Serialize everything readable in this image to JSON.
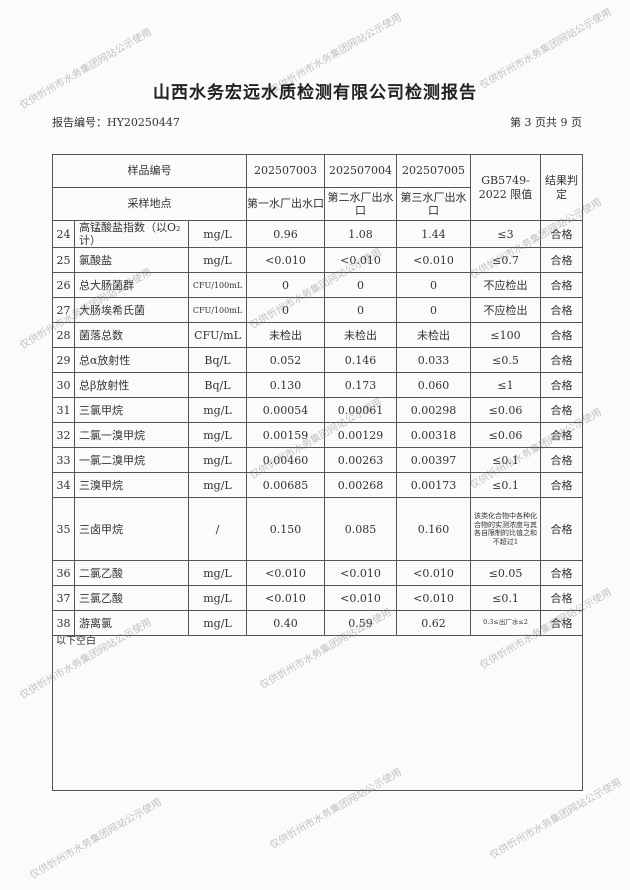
{
  "title": "山西水务宏远水质检测有限公司检测报告",
  "report_no": "报告编号：HY20250447",
  "page_info": "第 3 页共 9 页",
  "header": {
    "sample_no_label": "样品编号",
    "location_label": "采样地点",
    "samples": [
      "202507003",
      "202507004",
      "202507005"
    ],
    "locations": [
      "第一水厂出水口",
      "第二水厂出水口",
      "第三水厂出水口"
    ],
    "limit_label": "GB5749-2022 限值",
    "result_label": "结果判定"
  },
  "rows": [
    {
      "no": "24",
      "name": "高锰酸盐指数（以O₂计）",
      "unit": "mg/L",
      "v1": "0.96",
      "v2": "1.08",
      "v3": "1.44",
      "limit": "≤3",
      "result": "合格"
    },
    {
      "no": "25",
      "name": "氯酸盐",
      "unit": "mg/L",
      "v1": "<0.010",
      "v2": "<0.010",
      "v3": "<0.010",
      "limit": "≤0.7",
      "result": "合格"
    },
    {
      "no": "26",
      "name": "总大肠菌群",
      "unit": "CFU/100mL",
      "v1": "0",
      "v2": "0",
      "v3": "0",
      "limit": "不应检出",
      "result": "合格"
    },
    {
      "no": "27",
      "name": "大肠埃希氏菌",
      "unit": "CFU/100mL",
      "v1": "0",
      "v2": "0",
      "v3": "0",
      "limit": "不应检出",
      "result": "合格"
    },
    {
      "no": "28",
      "name": "菌落总数",
      "unit": "CFU/mL",
      "v1": "未检出",
      "v2": "未检出",
      "v3": "未检出",
      "limit": "≤100",
      "result": "合格"
    },
    {
      "no": "29",
      "name": "总α放射性",
      "unit": "Bq/L",
      "v1": "0.052",
      "v2": "0.146",
      "v3": "0.033",
      "limit": "≤0.5",
      "result": "合格"
    },
    {
      "no": "30",
      "name": "总β放射性",
      "unit": "Bq/L",
      "v1": "0.130",
      "v2": "0.173",
      "v3": "0.060",
      "limit": "≤1",
      "result": "合格"
    },
    {
      "no": "31",
      "name": "三氯甲烷",
      "unit": "mg/L",
      "v1": "0.00054",
      "v2": "0.00061",
      "v3": "0.00298",
      "limit": "≤0.06",
      "result": "合格"
    },
    {
      "no": "32",
      "name": "二氯一溴甲烷",
      "unit": "mg/L",
      "v1": "0.00159",
      "v2": "0.00129",
      "v3": "0.00318",
      "limit": "≤0.06",
      "result": "合格"
    },
    {
      "no": "33",
      "name": "一氯二溴甲烷",
      "unit": "mg/L",
      "v1": "0.00460",
      "v2": "0.00263",
      "v3": "0.00397",
      "limit": "≤0.1",
      "result": "合格"
    },
    {
      "no": "34",
      "name": "三溴甲烷",
      "unit": "mg/L",
      "v1": "0.00685",
      "v2": "0.00268",
      "v3": "0.00173",
      "limit": "≤0.1",
      "result": "合格"
    },
    {
      "no": "35",
      "name": "三卤甲烷",
      "unit": "/",
      "v1": "0.150",
      "v2": "0.085",
      "v3": "0.160",
      "limit": "该类化合物中各种化合物的实测浓度与其各自限制的比值之和不超过1",
      "result": "合格"
    },
    {
      "no": "36",
      "name": "二氯乙酸",
      "unit": "mg/L",
      "v1": "<0.010",
      "v2": "<0.010",
      "v3": "<0.010",
      "limit": "≤0.05",
      "result": "合格"
    },
    {
      "no": "37",
      "name": "三氯乙酸",
      "unit": "mg/L",
      "v1": "<0.010",
      "v2": "<0.010",
      "v3": "<0.010",
      "limit": "≤0.1",
      "result": "合格"
    },
    {
      "no": "38",
      "name": "游离氯",
      "unit": "mg/L",
      "v1": "0.40",
      "v2": "0.59",
      "v3": "0.62",
      "limit": "0.3≤出厂水≤2",
      "result": "合格"
    }
  ],
  "blank_note": "以下空白",
  "watermark": "仅供忻州市水务集团网站公示使用"
}
